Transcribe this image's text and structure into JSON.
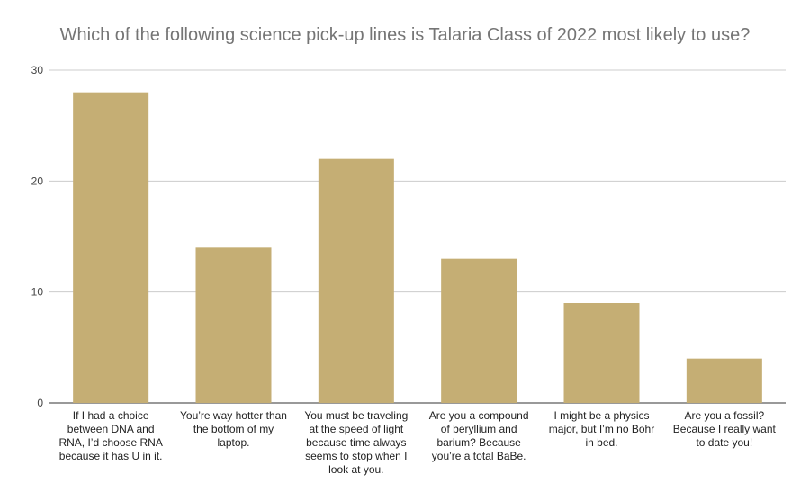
{
  "chart_data": {
    "type": "bar",
    "title": "Which of the following science pick-up lines is Talaria Class of 2022 most likely to use?",
    "xlabel": "",
    "ylabel": "",
    "categories": [
      "If I had a choice between DNA and RNA, I’d choose RNA because it has U in it.",
      "You’re way hotter than the bottom of my laptop.",
      "You must be traveling at the speed of light because time always seems to stop when I look at you.",
      "Are you a compound of beryllium and barium? Because you’re a total BaBe.",
      "I might be a physics major, but I’m no Bohr in bed.",
      "Are you a fossil? Because I really want to date you!"
    ],
    "values": [
      28,
      14,
      22,
      13,
      9,
      4
    ],
    "ylim": [
      0,
      30
    ],
    "yticks": [
      0,
      10,
      20,
      30
    ],
    "grid": true,
    "legend": "none",
    "bar_color": "#c5ae74"
  }
}
